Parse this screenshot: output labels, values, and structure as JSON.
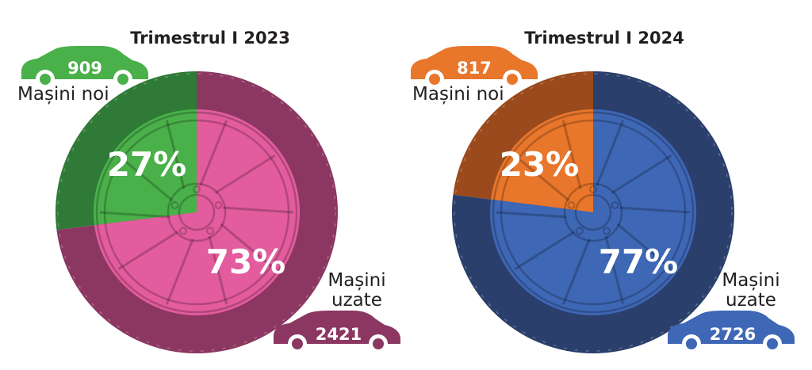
{
  "charts": [
    {
      "title": "Trimestrul I 2023",
      "new_label": "Mașini noi",
      "used_label_1": "Mașini",
      "used_label_2": "uzate",
      "new_count": "909",
      "used_count": "2421",
      "new_pct_label": "27%",
      "used_pct_label": "73%",
      "colors": {
        "new": "#4ab04a",
        "new_dark": "#2f7a36",
        "used": "#e35c9e",
        "used_dark": "#8b3761",
        "used_car": "#8b3761"
      }
    },
    {
      "title": "Trimestrul I 2024",
      "new_label": "Mașini noi",
      "used_label_1": "Mașini",
      "used_label_2": "uzate",
      "new_count": "817",
      "used_count": "2726",
      "new_pct_label": "23%",
      "used_pct_label": "77%",
      "colors": {
        "new": "#e8762b",
        "new_dark": "#9a4a1d",
        "used": "#3e67b5",
        "used_dark": "#2a3f6b",
        "used_car": "#3e67b5"
      }
    }
  ],
  "chart_data": [
    {
      "type": "pie",
      "title": "Trimestrul I 2023",
      "categories": [
        "Mașini noi",
        "Mașini uzate"
      ],
      "values": [
        27,
        73
      ],
      "counts": [
        909,
        2421
      ]
    },
    {
      "type": "pie",
      "title": "Trimestrul I 2024",
      "categories": [
        "Mașini noi",
        "Mașini uzate"
      ],
      "values": [
        23,
        77
      ],
      "counts": [
        817,
        2726
      ]
    }
  ]
}
